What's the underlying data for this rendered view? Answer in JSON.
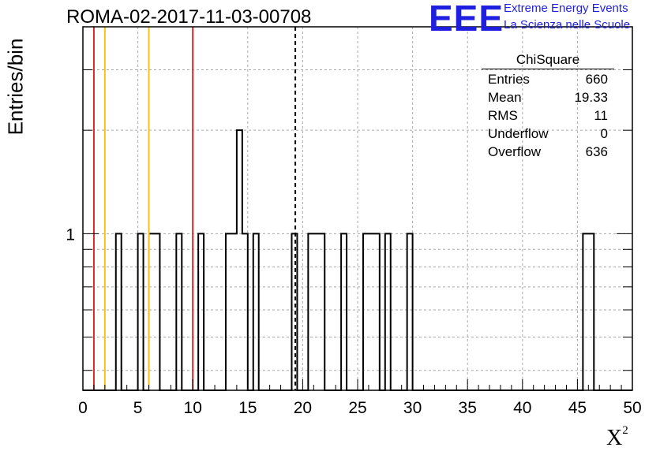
{
  "header": {
    "title": "ROMA-02-2017-11-03-00708",
    "logo_text": "EEE",
    "logo_line1": "Extreme Energy Events",
    "logo_line2": "La Scienza nelle Scuole"
  },
  "stats_box": {
    "title": "ChiSquare",
    "rows": [
      {
        "label": "Entries",
        "value": "660"
      },
      {
        "label": "Mean",
        "value": "19.33"
      },
      {
        "label": "RMS",
        "value": "11"
      },
      {
        "label": "Underflow",
        "value": "0"
      },
      {
        "label": "Overflow",
        "value": "636"
      }
    ]
  },
  "colors": {
    "red": "#d42a2a",
    "yellow": "#f5c21a",
    "hist": "#000000",
    "grid": "#aaaaaa",
    "logo": "#1f1fe0"
  },
  "chart_data": {
    "type": "bar",
    "title": "ROMA-02-2017-11-03-00708",
    "xlabel": "X",
    "xlabel_sup": "2",
    "ylabel": "Entries/bin",
    "xlim": [
      0,
      50
    ],
    "ylim_log": [
      0.35,
      4
    ],
    "log_y": true,
    "grid": true,
    "bin_width": 0.5,
    "x_ticks": [
      "0",
      "5",
      "10",
      "15",
      "20",
      "25",
      "30",
      "35",
      "40",
      "45",
      "50"
    ],
    "y_ticks": [
      "1"
    ],
    "bins": [
      {
        "x": 3.0,
        "y": 1
      },
      {
        "x": 5.0,
        "y": 1
      },
      {
        "x": 6.0,
        "y": 1
      },
      {
        "x": 6.5,
        "y": 1
      },
      {
        "x": 8.5,
        "y": 1
      },
      {
        "x": 10.5,
        "y": 1
      },
      {
        "x": 13.0,
        "y": 1
      },
      {
        "x": 13.5,
        "y": 1
      },
      {
        "x": 14.0,
        "y": 2
      },
      {
        "x": 14.5,
        "y": 1
      },
      {
        "x": 15.5,
        "y": 1
      },
      {
        "x": 19.0,
        "y": 1
      },
      {
        "x": 20.5,
        "y": 1
      },
      {
        "x": 21.0,
        "y": 1
      },
      {
        "x": 21.5,
        "y": 1
      },
      {
        "x": 23.5,
        "y": 1
      },
      {
        "x": 25.5,
        "y": 1
      },
      {
        "x": 26.0,
        "y": 1
      },
      {
        "x": 26.5,
        "y": 1
      },
      {
        "x": 27.5,
        "y": 1
      },
      {
        "x": 29.5,
        "y": 1
      },
      {
        "x": 45.5,
        "y": 1
      },
      {
        "x": 46.0,
        "y": 1
      }
    ],
    "vertical_lines": [
      {
        "x": 1.0,
        "color": "red",
        "style": "solid"
      },
      {
        "x": 2.0,
        "color": "yellow",
        "style": "solid"
      },
      {
        "x": 6.0,
        "color": "yellow",
        "style": "solid"
      },
      {
        "x": 10.0,
        "color": "red",
        "style": "solid"
      },
      {
        "x": 19.33,
        "color": "black",
        "style": "dashed"
      }
    ]
  }
}
